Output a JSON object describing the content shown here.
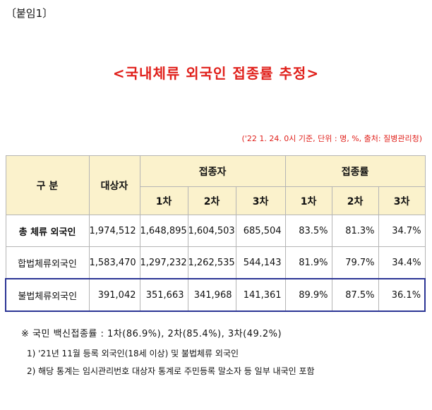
{
  "attachment_label": "〔붙임1〕",
  "title": "<국내체류 외국인 접종률 추정>",
  "source_note": "('22 1. 24. 0시 기준, 단위 : 명, %, 출처: 질병관리청)",
  "table": {
    "header_category": "구  분",
    "header_target": "대상자",
    "header_vaccinated": "접종자",
    "header_rate": "접종률",
    "dose_labels": [
      "1차",
      "2차",
      "3차"
    ],
    "rows": [
      {
        "label": "총 체류 외국인",
        "target": "1,974,512",
        "vaccinated": [
          "1,648,895",
          "1,604,503",
          "685,504"
        ],
        "rate": [
          "83.5%",
          "81.3%",
          "34.7%"
        ]
      },
      {
        "label": "합법체류외국인",
        "target": "1,583,470",
        "vaccinated": [
          "1,297,232",
          "1,262,535",
          "544,143"
        ],
        "rate": [
          "81.9%",
          "79.7%",
          "34.4%"
        ]
      },
      {
        "label": "불법체류외국인",
        "target": "391,042",
        "vaccinated": [
          "351,663",
          "341,968",
          "141,361"
        ],
        "rate": [
          "89.9%",
          "87.5%",
          "36.1%"
        ]
      }
    ]
  },
  "national_note": "※ 국민 백신접종률 : 1차(86.9%), 2차(85.4%), 3차(49.2%)",
  "footnotes": [
    "1) '21년 11월 등록 외국인(18세 이상) 및 불법체류 외국인",
    "2) 해당 통계는 임시관리번호 대상자 통계로 주민등록 말소자 등 일부 내국인 포함"
  ]
}
